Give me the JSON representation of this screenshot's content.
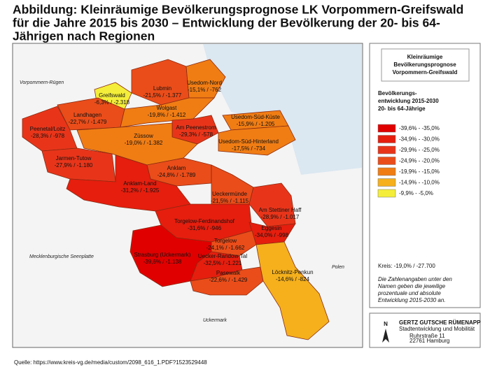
{
  "title": [
    "Abbildung: Kleinräumige Bevölkerungsprognose LK Vorpommern-Greifswald",
    "für die Jahre 2015 bis 2030 – Entwicklung der Bevölkerung der  20- bis 64-",
    "Jährigen nach Regionen"
  ],
  "map": {
    "regions": [
      {
        "name": "Greifswald",
        "value": "-6,3% / -2.318",
        "color": "#f4ee3a"
      },
      {
        "name": "Lubmin",
        "value": "-21,5% / -1.377",
        "color": "#ea4d1a"
      },
      {
        "name": "Usedom-Nord",
        "value": "-15,1% / -762",
        "color": "#f07d14"
      },
      {
        "name": "Landhagen",
        "value": "-22,7% / -1.479",
        "color": "#ea4d1a"
      },
      {
        "name": "Wolgast",
        "value": "-19,8% / -1.412",
        "color": "#f07d14"
      },
      {
        "name": "Peenetal/Loitz",
        "value": "-28,3% / -978",
        "color": "#e8351a"
      },
      {
        "name": "Am Peenestrom",
        "value": "-29,3% / -578",
        "color": "#e8351a"
      },
      {
        "name": "Usedom-Süd-Küste",
        "value": "-15,9% / -1.205",
        "color": "#f07d14"
      },
      {
        "name": "Züssow",
        "value": "-19,0% / -1.382",
        "color": "#f07d14"
      },
      {
        "name": "Usedom-Süd-Hinterland",
        "value": "-17,5% / -734",
        "color": "#f07d14"
      },
      {
        "name": "Jarmen-Tutow",
        "value": "-27,9% / -1.180",
        "color": "#e8351a"
      },
      {
        "name": "Anklam",
        "value": "-24,8% / -1.789",
        "color": "#ea4d1a"
      },
      {
        "name": "Anklam-Land",
        "value": "-31,2% / -1.925",
        "color": "#e51e0e"
      },
      {
        "name": "Ueckermünde",
        "value": "-21,5% / -1.115",
        "color": "#ea4d1a"
      },
      {
        "name": "Am Stettiner Haff",
        "value": "-28,9% / -1.017",
        "color": "#e8351a"
      },
      {
        "name": "Torgelow-Ferdinandshof",
        "value": "-31,6% / -946",
        "color": "#e51e0e"
      },
      {
        "name": "Eggesin",
        "value": "-34,0% / -998",
        "color": "#e51e0e"
      },
      {
        "name": "Torgelow",
        "value": "-24,1% / -1.662",
        "color": "#ea4d1a"
      },
      {
        "name": "Strasburg (Uckermark)",
        "value": "-39,6% / -1.138",
        "color": "#e00000"
      },
      {
        "name": "Uecker-Randow-Tal",
        "value": "-32,5% / -1.221",
        "color": "#e51e0e"
      },
      {
        "name": "Pasewalk",
        "value": "-22,6% / -1.429",
        "color": "#ea4d1a"
      },
      {
        "name": "Löcknitz-Penkun",
        "value": "-14,6% / -824",
        "color": "#f5b01c"
      }
    ],
    "neighbors": [
      "Vorpommern-Rügen",
      "Mecklenburgische Seenplatte",
      "Uckermark",
      "Polen"
    ]
  },
  "legend": {
    "title": [
      "Kleinräumige",
      "Bevölkerungsprognose",
      "Vorpommern-Greifswald"
    ],
    "subtitle": [
      "Bevölkerungs-",
      "entwicklung 2015-2030",
      "20- bis 64-Jährige"
    ],
    "items": [
      {
        "label": "-39,6% - -35,0%",
        "color": "#e00000"
      },
      {
        "label": "-34,9% - -30,0%",
        "color": "#e51e0e"
      },
      {
        "label": "-29,9% - -25,0%",
        "color": "#e8351a"
      },
      {
        "label": "-24,9% - -20,0%",
        "color": "#ea4d1a"
      },
      {
        "label": "-19,9% - -15,0%",
        "color": "#f07d14"
      },
      {
        "label": "-14,9% - -10,0%",
        "color": "#f5b01c"
      },
      {
        "label": "-9,9% - -5,0%",
        "color": "#f4ee3a"
      }
    ],
    "district": "Kreis: -19,0% / -27.700",
    "note": [
      "Die Zahlenangaben unter den",
      "Namen geben die jeweilige",
      "prozentuale und absolute",
      "Entwicklung 2015-2030 an."
    ]
  },
  "logo": {
    "north": "N",
    "company": "GERTZ GUTSCHE RÜMENAPP",
    "tagline": "Stadtentwicklung und Mobilität",
    "address": [
      "Ruhrstraße 11",
      "22761 Hamburg"
    ]
  },
  "source": "Quelle: https://www.kreis-vg.de/media/custom/2098_616_1.PDF?1523529448"
}
